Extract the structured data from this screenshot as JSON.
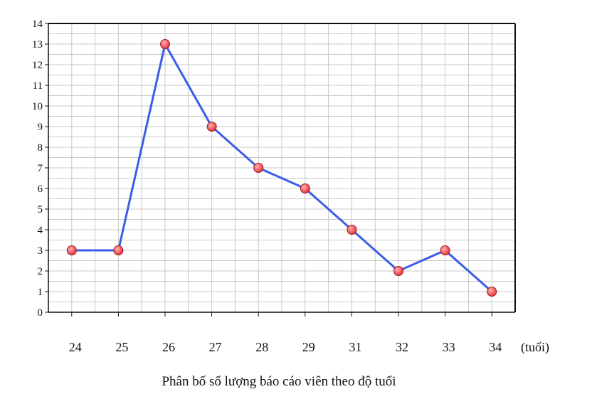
{
  "chart_data": {
    "type": "line",
    "title": "Phân bố số lượng báo cáo viên theo độ tuổi",
    "x_unit_label": "(tuổi)",
    "categories": [
      "24",
      "25",
      "26",
      "27",
      "28",
      "29",
      "31",
      "32",
      "33",
      "34"
    ],
    "series": [
      {
        "values": [
          3,
          3,
          13,
          9,
          7,
          6,
          4,
          2,
          3,
          1
        ]
      }
    ],
    "ylim": [
      0,
      14
    ],
    "y_ticks": [
      0,
      1,
      2,
      3,
      4,
      5,
      6,
      7,
      8,
      9,
      10,
      11,
      12,
      13,
      14
    ],
    "grid": true,
    "legend": "none",
    "colors": {
      "line": "#3a5ee8",
      "marker_fill": "#e8323a",
      "marker_highlight": "#ffb3b3",
      "marker_stroke": "#a01a20",
      "grid": "#c8c8c8",
      "axis": "#111111"
    }
  }
}
